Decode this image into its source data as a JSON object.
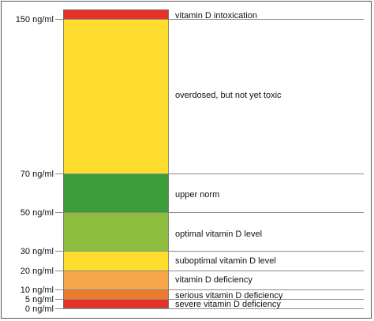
{
  "chart_data": {
    "type": "bar",
    "title": "",
    "xlabel": "",
    "ylabel": "",
    "ylim": [
      0,
      150
    ],
    "grid": true,
    "y_ticks": [
      {
        "value": 150,
        "label": "150 ng/ml"
      },
      {
        "value": 70,
        "label": "70 ng/ml"
      },
      {
        "value": 50,
        "label": "50 ng/ml"
      },
      {
        "value": 30,
        "label": "30 ng/ml"
      },
      {
        "value": 20,
        "label": "20 ng/ml"
      },
      {
        "value": 10,
        "label": "10 ng/ml"
      },
      {
        "value": 5,
        "label": "5 ng/ml"
      },
      {
        "value": 0,
        "label": "0 ng/ml"
      }
    ],
    "bands": [
      {
        "from": 0,
        "to": 5,
        "label": "severe vitamin D deficiency",
        "color": "#e63228"
      },
      {
        "from": 5,
        "to": 10,
        "label": "serious vitamin D deficiency",
        "color": "#ee7a2e"
      },
      {
        "from": 10,
        "to": 20,
        "label": "vitamin D deficiency",
        "color": "#f7a649"
      },
      {
        "from": 20,
        "to": 30,
        "label": "suboptimal vitamin D level",
        "color": "#fedd2e"
      },
      {
        "from": 30,
        "to": 50,
        "label": "optimal vitamin D level",
        "color": "#8dbd3d"
      },
      {
        "from": 50,
        "to": 70,
        "label": "upper norm",
        "color": "#3d9c3a"
      },
      {
        "from": 70,
        "to": 150,
        "label": "overdosed, but not yet toxic",
        "color": "#fedd2e"
      },
      {
        "from": 150,
        "to": null,
        "label": "vitamin D intoxication",
        "color": "#e63228"
      }
    ]
  }
}
